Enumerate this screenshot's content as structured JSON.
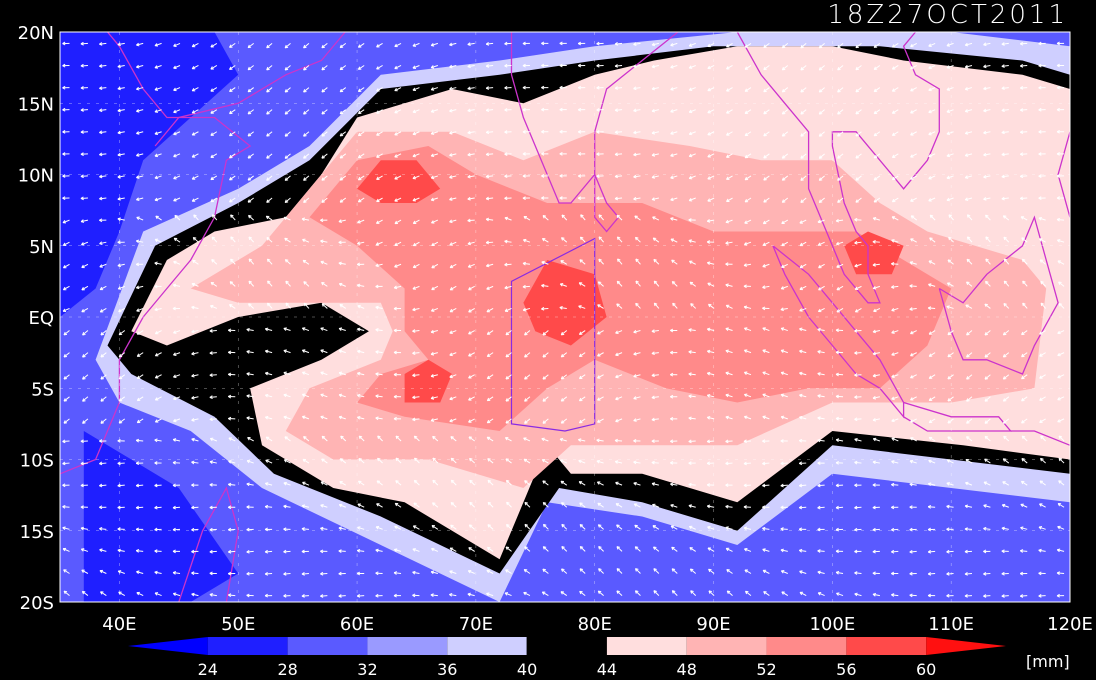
{
  "title": "18Z27OCT2011",
  "colors": {
    "background": "#000000",
    "frame": "#ffffff",
    "coast": "#cc33cc",
    "arrows": "#ffffff"
  },
  "map": {
    "lon_range": [
      35,
      120
    ],
    "lat_range": [
      -20,
      20
    ],
    "lat_ticks": [
      {
        "lat": 20,
        "label": "20N"
      },
      {
        "lat": 15,
        "label": "15N"
      },
      {
        "lat": 10,
        "label": "10N"
      },
      {
        "lat": 5,
        "label": "5N"
      },
      {
        "lat": 0,
        "label": "EQ"
      },
      {
        "lat": -5,
        "label": "5S"
      },
      {
        "lat": -10,
        "label": "10S"
      },
      {
        "lat": -15,
        "label": "15S"
      },
      {
        "lat": -20,
        "label": "20S"
      }
    ],
    "lon_ticks": [
      {
        "lon": 40,
        "label": "40E"
      },
      {
        "lon": 50,
        "label": "50E"
      },
      {
        "lon": 60,
        "label": "60E"
      },
      {
        "lon": 70,
        "label": "70E"
      },
      {
        "lon": 80,
        "label": "80E"
      },
      {
        "lon": 90,
        "label": "90E"
      },
      {
        "lon": 100,
        "label": "100E"
      },
      {
        "lon": 110,
        "label": "110E"
      },
      {
        "lon": 120,
        "label": "120E"
      }
    ],
    "field": "precipitable water with wind vectors",
    "regions": [
      {
        "level": "lt24",
        "color": "#1f1fff",
        "lonlat": [
          [
            35,
            20
          ],
          [
            48,
            20
          ],
          [
            50,
            17
          ],
          [
            46,
            14
          ],
          [
            42,
            11
          ],
          [
            40,
            6
          ],
          [
            38,
            2
          ],
          [
            35,
            0
          ]
        ]
      },
      {
        "level": "lt24",
        "color": "#1f1fff",
        "lonlat": [
          [
            37,
            -8
          ],
          [
            45,
            -12
          ],
          [
            50,
            -18
          ],
          [
            46,
            -20
          ],
          [
            37,
            -20
          ]
        ]
      },
      {
        "level": "44-48",
        "color": "#ffdede",
        "lonlat": [
          [
            41,
            -1
          ],
          [
            44,
            4
          ],
          [
            48,
            6
          ],
          [
            54,
            7
          ],
          [
            57,
            10
          ],
          [
            60,
            14
          ],
          [
            68,
            16
          ],
          [
            74,
            15
          ],
          [
            80,
            17
          ],
          [
            85,
            18
          ],
          [
            92,
            19
          ],
          [
            100,
            19
          ],
          [
            106,
            18
          ],
          [
            116,
            17
          ],
          [
            120,
            16
          ],
          [
            120,
            -10
          ],
          [
            111,
            -9
          ],
          [
            100,
            -8
          ],
          [
            92,
            -13
          ],
          [
            84,
            -11
          ],
          [
            78,
            -11
          ],
          [
            76,
            -9
          ],
          [
            72,
            -17
          ],
          [
            64,
            -13
          ],
          [
            58,
            -12
          ],
          [
            52,
            -9
          ],
          [
            51,
            -5
          ],
          [
            57,
            -3
          ],
          [
            61,
            -1
          ],
          [
            57,
            1
          ],
          [
            50,
            0
          ],
          [
            44,
            -2
          ]
        ]
      },
      {
        "level": "48-52",
        "color": "#ffb4b4",
        "lonlat": [
          [
            46,
            2
          ],
          [
            52,
            5
          ],
          [
            56,
            9
          ],
          [
            60,
            13
          ],
          [
            68,
            13
          ],
          [
            74,
            11
          ],
          [
            80,
            13
          ],
          [
            88,
            12
          ],
          [
            94,
            11
          ],
          [
            100,
            11
          ],
          [
            104,
            8
          ],
          [
            108,
            6
          ],
          [
            116,
            4
          ],
          [
            118,
            2
          ],
          [
            117,
            -5
          ],
          [
            110,
            -6
          ],
          [
            100,
            -6
          ],
          [
            92,
            -9
          ],
          [
            84,
            -9
          ],
          [
            78,
            -9
          ],
          [
            74,
            -12
          ],
          [
            66,
            -10
          ],
          [
            58,
            -10
          ],
          [
            54,
            -8
          ],
          [
            56,
            -5
          ],
          [
            62,
            -3
          ],
          [
            63,
            -1
          ],
          [
            62,
            1
          ],
          [
            56,
            1
          ],
          [
            50,
            1
          ]
        ]
      },
      {
        "level": "52-56",
        "color": "#ff8a8a",
        "lonlat": [
          [
            56,
            7
          ],
          [
            60,
            11
          ],
          [
            66,
            12
          ],
          [
            70,
            10
          ],
          [
            76,
            8
          ],
          [
            84,
            8
          ],
          [
            90,
            6
          ],
          [
            96,
            6
          ],
          [
            102,
            6
          ],
          [
            106,
            4
          ],
          [
            110,
            2
          ],
          [
            108,
            -2
          ],
          [
            104,
            -5
          ],
          [
            98,
            -5
          ],
          [
            92,
            -6
          ],
          [
            86,
            -5
          ],
          [
            80,
            -3
          ],
          [
            76,
            -5
          ],
          [
            72,
            -8
          ],
          [
            64,
            -7
          ],
          [
            60,
            -6
          ],
          [
            62,
            -4
          ],
          [
            66,
            -3
          ],
          [
            64,
            -1
          ],
          [
            64,
            2
          ],
          [
            60,
            5
          ]
        ]
      },
      {
        "level": "56-60",
        "color": "#ff4a4a",
        "lonlat": [
          [
            60,
            9
          ],
          [
            62,
            11
          ],
          [
            65,
            11
          ],
          [
            67,
            9
          ],
          [
            65,
            8
          ],
          [
            62,
            8
          ]
        ]
      },
      {
        "level": "56-60",
        "color": "#ff4a4a",
        "lonlat": [
          [
            74,
            1
          ],
          [
            76,
            4
          ],
          [
            80,
            3
          ],
          [
            81,
            0
          ],
          [
            78,
            -2
          ],
          [
            75,
            -1
          ]
        ]
      },
      {
        "level": "56-60",
        "color": "#ff4a4a",
        "lonlat": [
          [
            64,
            -4
          ],
          [
            66,
            -3
          ],
          [
            68,
            -4
          ],
          [
            67,
            -6
          ],
          [
            64,
            -6
          ]
        ]
      },
      {
        "level": "56-60",
        "color": "#ff4a4a",
        "lonlat": [
          [
            101,
            5
          ],
          [
            103,
            6
          ],
          [
            106,
            5
          ],
          [
            105,
            3
          ],
          [
            102,
            3
          ]
        ]
      }
    ],
    "coastlines": [
      [
        [
          35,
          -11
        ],
        [
          38,
          -10
        ],
        [
          40,
          -6
        ],
        [
          40,
          -3
        ],
        [
          42,
          0
        ],
        [
          44,
          2
        ],
        [
          46,
          4
        ],
        [
          48,
          7
        ],
        [
          49,
          11
        ],
        [
          51,
          12
        ],
        [
          48,
          14
        ],
        [
          44,
          14
        ],
        [
          42,
          16
        ],
        [
          40,
          19
        ],
        [
          39,
          20
        ]
      ],
      [
        [
          43,
          12
        ],
        [
          45,
          14
        ],
        [
          50,
          15
        ],
        [
          54,
          17
        ],
        [
          57,
          18
        ],
        [
          59,
          20
        ]
      ],
      [
        [
          73,
          20
        ],
        [
          73,
          17
        ],
        [
          74,
          14
        ],
        [
          76,
          10
        ],
        [
          77,
          8
        ],
        [
          78,
          8
        ],
        [
          80,
          10
        ],
        [
          80,
          13
        ],
        [
          81,
          16
        ],
        [
          84,
          18
        ],
        [
          87,
          20
        ]
      ],
      [
        [
          80,
          10
        ],
        [
          81,
          8
        ],
        [
          82,
          7
        ],
        [
          81,
          6
        ],
        [
          80,
          7
        ],
        [
          80,
          10
        ]
      ],
      [
        [
          92,
          20
        ],
        [
          94,
          17
        ],
        [
          96,
          15
        ],
        [
          98,
          13
        ],
        [
          98,
          9
        ],
        [
          99,
          7
        ],
        [
          100,
          5
        ],
        [
          101,
          3
        ],
        [
          103,
          1
        ],
        [
          104,
          1
        ],
        [
          103,
          3
        ],
        [
          103,
          5
        ],
        [
          102,
          6
        ],
        [
          101,
          8
        ],
        [
          100,
          12
        ],
        [
          100,
          13
        ],
        [
          102,
          13
        ],
        [
          105,
          10
        ],
        [
          106,
          9
        ],
        [
          108,
          11
        ],
        [
          109,
          13
        ],
        [
          109,
          16
        ],
        [
          107,
          17
        ],
        [
          106,
          19
        ],
        [
          107,
          20
        ]
      ],
      [
        [
          95,
          5
        ],
        [
          98,
          3
        ],
        [
          100,
          1
        ],
        [
          102,
          -1
        ],
        [
          104,
          -3
        ],
        [
          106,
          -6
        ],
        [
          106,
          -7
        ],
        [
          104,
          -5
        ],
        [
          102,
          -4
        ],
        [
          100,
          -2
        ],
        [
          98,
          0
        ],
        [
          96,
          3
        ],
        [
          95,
          5
        ]
      ],
      [
        [
          106,
          -6
        ],
        [
          110,
          -7
        ],
        [
          114,
          -7
        ],
        [
          115,
          -8
        ],
        [
          112,
          -8
        ],
        [
          108,
          -8
        ],
        [
          106,
          -7
        ]
      ],
      [
        [
          109,
          2
        ],
        [
          111,
          1
        ],
        [
          113,
          3
        ],
        [
          116,
          5
        ],
        [
          117,
          7
        ],
        [
          118,
          4
        ],
        [
          119,
          1
        ],
        [
          117,
          -2
        ],
        [
          116,
          -4
        ],
        [
          113,
          -3
        ],
        [
          111,
          -3
        ],
        [
          110,
          -1
        ],
        [
          109,
          2
        ]
      ],
      [
        [
          115,
          -8
        ],
        [
          117,
          -8
        ],
        [
          120,
          -9
        ]
      ],
      [
        [
          120,
          13
        ],
        [
          119,
          10
        ],
        [
          120,
          7
        ]
      ],
      [
        [
          44,
          -25
        ],
        [
          45,
          -20
        ],
        [
          47,
          -15
        ],
        [
          49,
          -12
        ],
        [
          50,
          -15
        ],
        [
          49,
          -20
        ],
        [
          48,
          -25
        ]
      ]
    ],
    "box_outline": [
      [
        73,
        -7.5
      ],
      [
        77.5,
        -8
      ],
      [
        80,
        -7.5
      ],
      [
        80,
        5.5
      ],
      [
        73,
        2.5
      ]
    ]
  },
  "colorbar": {
    "labels": [
      "24",
      "28",
      "32",
      "36",
      "40",
      "44",
      "48",
      "52",
      "56",
      "60"
    ],
    "colors": [
      "#0000ff",
      "#1f1fff",
      "#5a5aff",
      "#9a9aff",
      "#cfcfff",
      "#000000",
      "#ffdede",
      "#ffb4b4",
      "#ff8a8a",
      "#ff4a4a",
      "#ff1010"
    ],
    "units": "[mm]"
  }
}
